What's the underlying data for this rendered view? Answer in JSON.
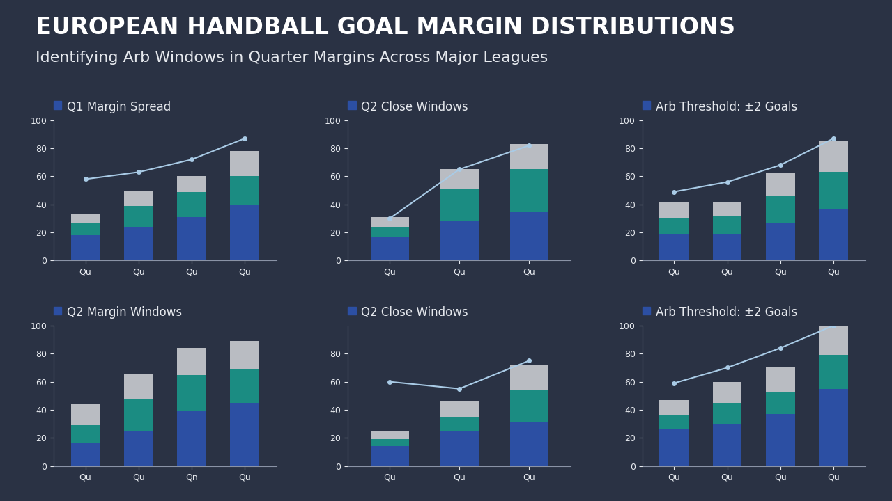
{
  "header": {
    "title": "EUROPEAN HANDBALL GOAL MARGIN DISTRIBUTIONS",
    "subtitle": "Identifying Arb Windows in Quarter Margins Across Major Leagues"
  },
  "chart_data": [
    {
      "type": "bar",
      "stacked": true,
      "title": "Q1 Margin Spread",
      "categories": [
        "Qu",
        "Qu",
        "Qu",
        "Qu"
      ],
      "series": [
        {
          "color": "#2c4fa3",
          "values": [
            18,
            24,
            31,
            40
          ]
        },
        {
          "color": "#1b8c82",
          "values": [
            9,
            15,
            18,
            20
          ]
        },
        {
          "color": "#b9bcc2",
          "values": [
            6,
            11,
            11,
            18
          ]
        },
        {
          "type": "line",
          "color": "#a9cbe6",
          "marker": "o",
          "values": [
            58,
            63,
            72,
            87
          ]
        }
      ],
      "ylim": [
        0,
        100
      ],
      "yticks": [
        0,
        20,
        40,
        60,
        80,
        100
      ]
    },
    {
      "type": "bar",
      "stacked": true,
      "title": "Q2 Close Windows",
      "categories": [
        "Qu",
        "Qu",
        "Qu"
      ],
      "series": [
        {
          "color": "#2c4fa3",
          "values": [
            17,
            28,
            35
          ]
        },
        {
          "color": "#1b8c82",
          "values": [
            7,
            23,
            30
          ]
        },
        {
          "color": "#b9bcc2",
          "values": [
            7,
            14,
            18
          ]
        },
        {
          "type": "line",
          "color": "#a9cbe6",
          "marker": "o",
          "values": [
            30,
            65,
            82
          ]
        }
      ],
      "ylim": [
        0,
        100
      ],
      "yticks": [
        0,
        20,
        40,
        60,
        80,
        100
      ]
    },
    {
      "type": "bar",
      "stacked": true,
      "title": "Arb Threshold: ±2 Goals",
      "categories": [
        "Qu",
        "Qu",
        "Qu",
        "Qu"
      ],
      "series": [
        {
          "color": "#2c4fa3",
          "values": [
            19,
            19,
            27,
            37
          ]
        },
        {
          "color": "#1b8c82",
          "values": [
            11,
            13,
            19,
            26
          ]
        },
        {
          "color": "#b9bcc2",
          "values": [
            12,
            10,
            16,
            22
          ]
        },
        {
          "type": "line",
          "color": "#a9cbe6",
          "marker": "o",
          "values": [
            49,
            56,
            68,
            87
          ]
        }
      ],
      "ylim": [
        0,
        100
      ],
      "yticks": [
        0,
        20,
        40,
        60,
        80,
        100
      ]
    },
    {
      "type": "bar",
      "stacked": true,
      "title": "Q2 Margin Windows",
      "categories": [
        "Qu",
        "Qu",
        "Qn",
        "Qu"
      ],
      "series": [
        {
          "color": "#2c4fa3",
          "values": [
            16,
            25,
            39,
            45
          ]
        },
        {
          "color": "#1b8c82",
          "values": [
            13,
            23,
            26,
            24
          ]
        },
        {
          "color": "#b9bcc2",
          "values": [
            15,
            18,
            19,
            20
          ]
        }
      ],
      "ylim": [
        0,
        100
      ],
      "yticks": [
        0,
        20,
        40,
        60,
        80,
        100
      ]
    },
    {
      "type": "bar",
      "stacked": true,
      "title": "Q2 Close Windows",
      "categories": [
        "Qu",
        "Qu",
        "Qu"
      ],
      "series": [
        {
          "color": "#2c4fa3",
          "values": [
            14,
            25,
            31
          ]
        },
        {
          "color": "#1b8c82",
          "values": [
            5,
            10,
            23
          ]
        },
        {
          "color": "#b9bcc2",
          "values": [
            6,
            11,
            18
          ]
        },
        {
          "type": "line",
          "color": "#a9cbe6",
          "marker": "o",
          "values": [
            60,
            55,
            75
          ]
        }
      ],
      "ylim": [
        0,
        100
      ],
      "yticks": [
        0,
        20,
        40,
        60,
        80
      ]
    },
    {
      "type": "bar",
      "stacked": true,
      "title": "Arb Threshold: ±2 Goals",
      "categories": [
        "Qu",
        "Qu",
        "Qu",
        "Qu"
      ],
      "series": [
        {
          "color": "#2c4fa3",
          "values": [
            26,
            30,
            37,
            55
          ]
        },
        {
          "color": "#1b8c82",
          "values": [
            10,
            15,
            16,
            24
          ]
        },
        {
          "color": "#b9bcc2",
          "values": [
            11,
            15,
            17,
            21
          ]
        },
        {
          "type": "line",
          "color": "#a9cbe6",
          "marker": "o",
          "values": [
            59,
            70,
            84,
            100
          ]
        }
      ],
      "ylim": [
        0,
        100
      ],
      "yticks": [
        0,
        20,
        40,
        60,
        80,
        100
      ]
    }
  ]
}
